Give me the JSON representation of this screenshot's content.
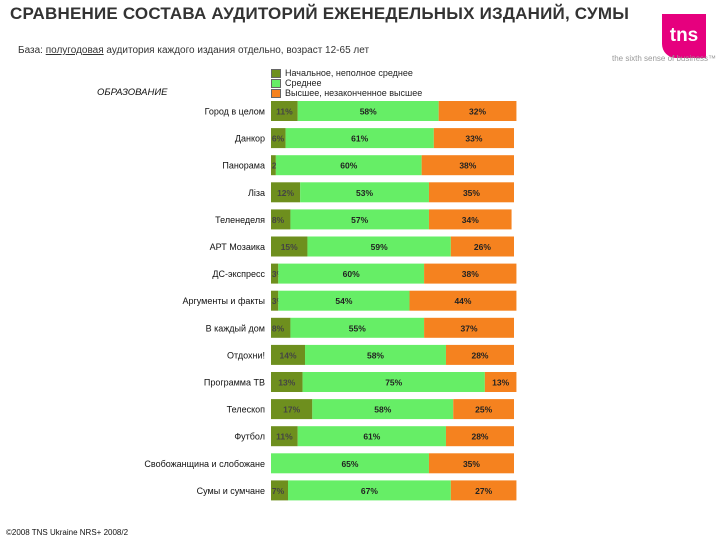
{
  "header": {
    "title": "СРАВНЕНИЕ СОСТАВА АУДИТОРИЙ ЕЖЕНЕДЕЛЬНЫХ ИЗДАНИЙ, СУМЫ",
    "base_prefix": "База: ",
    "base_underlined": "полугодовая",
    "base_suffix": " аудитория каждого издания отдельно, возраст 12-65 лет"
  },
  "logo": {
    "text": "tns",
    "tagline": "the sixth sense of business™",
    "color": "#e6007e"
  },
  "footer": "©2008 TNS Ukraine NRS+ 2008/2",
  "chart_data": {
    "type": "bar",
    "orientation": "horizontal",
    "stacked": true,
    "subtitle": "ОБРАЗОВАНИЕ",
    "legend_position": "top",
    "categories": [
      "Город в целом",
      "Данкор",
      "Панорама",
      "Ліза",
      "Теленеделя",
      "АРТ Мозаика",
      "ДС-экспресс",
      "Аргументы и факты",
      "В каждый дом",
      "Отдохни!",
      "Программа ТВ",
      "Телескоп",
      "Футбол",
      "Свобожанщина и слобожане",
      "Сумы и сумчане"
    ],
    "series": [
      {
        "name": "Начальное, неполное среднее",
        "color": "#6e8f1e",
        "values": [
          11,
          6,
          2,
          12,
          8,
          15,
          3,
          3,
          8,
          14,
          13,
          17,
          11,
          0,
          7
        ]
      },
      {
        "name": "Среднее",
        "color": "#66ee66",
        "values": [
          58,
          61,
          60,
          53,
          57,
          59,
          60,
          54,
          55,
          58,
          75,
          58,
          61,
          65,
          67
        ]
      },
      {
        "name": "Высшее, незаконченное высшее",
        "color": "#f5821f",
        "values": [
          32,
          33,
          38,
          35,
          34,
          26,
          38,
          44,
          37,
          28,
          13,
          25,
          28,
          35,
          27
        ]
      }
    ],
    "label_colors": [
      "#444444",
      "#222222",
      "#222222"
    ],
    "xlim": [
      0,
      100
    ]
  }
}
